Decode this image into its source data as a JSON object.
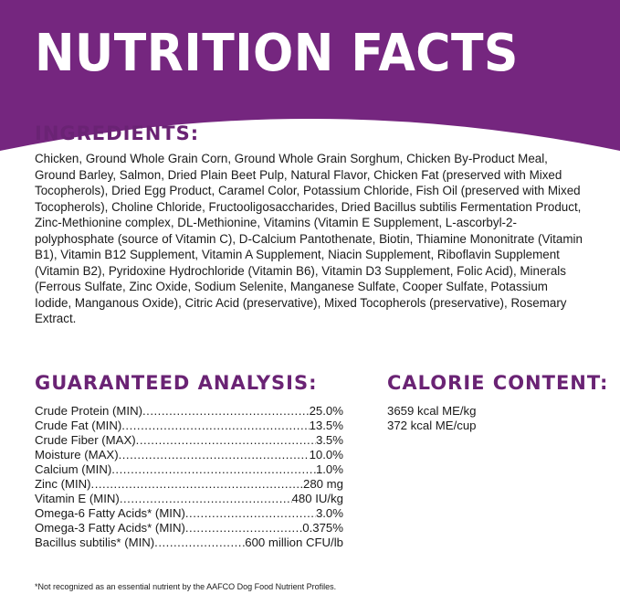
{
  "header": {
    "title": "NUTRITION FACTS",
    "color": "#75267f"
  },
  "ingredients": {
    "heading": "INGREDIENTS:",
    "text": "Chicken, Ground Whole Grain Corn, Ground Whole Grain Sorghum, Chicken By-Product Meal, Ground Barley, Salmon, Dried Plain Beet Pulp, Natural Flavor, Chicken Fat (preserved with Mixed Tocopherols), Dried Egg Product, Caramel Color, Potassium Chloride, Fish Oil (preserved with Mixed Tocopherols), Choline Chloride, Fructooligosaccharides, Dried Bacillus subtilis Fermentation Product, Zinc-Methionine complex, DL-Methionine, Vitamins (Vitamin E Supplement, L-ascorbyl-2-polyphosphate (source of Vitamin C), D-Calcium Pantothenate, Biotin, Thiamine Mononitrate (Vitamin B1), Vitamin B12 Supplement, Vitamin A Supplement, Niacin Supplement, Riboflavin Supplement (Vitamin B2), Pyridoxine Hydrochloride (Vitamin B6), Vitamin D3 Supplement, Folic Acid), Minerals (Ferrous Sulfate, Zinc Oxide, Sodium Selenite, Manganese Sulfate, Cooper Sulfate, Potassium Iodide, Manganous Oxide), Citric Acid (preservative), Mixed Tocopherols (preservative), Rosemary Extract."
  },
  "guaranteed_analysis": {
    "heading": "GUARANTEED ANALYSIS:",
    "rows": [
      {
        "label": "Crude Protein (MIN)",
        "value": "25.0%"
      },
      {
        "label": "Crude Fat (MIN)",
        "value": "13.5%"
      },
      {
        "label": "Crude Fiber (MAX)",
        "value": "3.5%"
      },
      {
        "label": "Moisture (MAX)",
        "value": "10.0%"
      },
      {
        "label": "Calcium (MIN)",
        "value": "1.0%"
      },
      {
        "label": "Zinc (MIN)",
        "value": "280 mg"
      },
      {
        "label": "Vitamin E (MIN)",
        "value": "480 IU/kg"
      },
      {
        "label": "Omega-6 Fatty Acids* (MIN)",
        "value": "3.0%"
      },
      {
        "label": "Omega-3 Fatty Acids* (MIN)",
        "value": "0.375%"
      },
      {
        "label": "Bacillus subtilis* (MIN)",
        "value": "600 million CFU/lb"
      }
    ]
  },
  "calorie_content": {
    "heading": "CALORIE CONTENT:",
    "lines": [
      "3659 kcal ME/kg",
      "372 kcal ME/cup"
    ]
  },
  "footnote": "*Not recognized as an essential nutrient by the AAFCO Dog Food Nutrient Profiles."
}
